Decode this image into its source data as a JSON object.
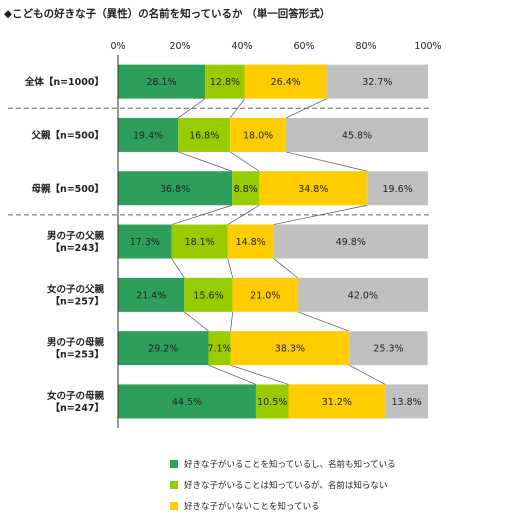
{
  "title": "◆こどもの好きな子（異性）の名前を知っているか （単一回答形式）",
  "colors": {
    "know_both": "#2e9e5b",
    "know_exists_not_name": "#99cc00",
    "know_not_exists": "#ffcc00",
    "other": "#c0c0c0"
  },
  "legend": [
    "好きな子がいることを知っているし、名前も知っている",
    "好きな子がいることは知っているが、名前は知らない",
    "好きな子がいないことを知っている"
  ],
  "chart_data": {
    "type": "bar",
    "orientation": "horizontal",
    "stacked": "percent",
    "title": "◆こどもの好きな子（異性）の名前を知っているか （単一回答形式）",
    "x_ticks": [
      "0%",
      "20%",
      "40%",
      "60%",
      "80%",
      "100%"
    ],
    "xlim": [
      0,
      100
    ],
    "categories": [
      [
        "全体【n=1000】"
      ],
      [
        "父親【n=500】"
      ],
      [
        "母親【n=500】"
      ],
      [
        "男の子の父親",
        "【n=243】"
      ],
      [
        "女の子の父親",
        "【n=257】"
      ],
      [
        "男の子の母親",
        "【n=253】"
      ],
      [
        "女の子の母親",
        "【n=247】"
      ]
    ],
    "series": [
      {
        "name": "好きな子がいることを知っているし、名前も知っている",
        "color": "#2e9e5b",
        "values": [
          28.1,
          19.4,
          36.8,
          17.3,
          21.4,
          29.2,
          44.5
        ]
      },
      {
        "name": "好きな子がいることは知っているが、名前は知らない",
        "color": "#99cc00",
        "values": [
          12.8,
          16.8,
          8.8,
          18.1,
          15.6,
          7.1,
          10.5
        ]
      },
      {
        "name": "好きな子がいないことを知っている",
        "color": "#ffcc00",
        "values": [
          26.4,
          18.0,
          34.8,
          14.8,
          21.0,
          38.3,
          31.2
        ]
      },
      {
        "color": "#c0c0c0",
        "values": [
          32.7,
          45.8,
          19.6,
          49.8,
          42.0,
          25.3,
          13.8
        ]
      }
    ],
    "value_labels": [
      [
        "28.1%",
        "12.8%",
        "26.4%",
        "32.7%"
      ],
      [
        "19.4%",
        "16.8%",
        "18.0%",
        "45.8%"
      ],
      [
        "36.8%",
        "8.8%",
        "34.8%",
        "19.6%"
      ],
      [
        "17.3%",
        "18.1%",
        "14.8%",
        "49.8%"
      ],
      [
        "21.4%",
        "15.6%",
        "21.0%",
        "42.0%"
      ],
      [
        "29.2%",
        "7.1%",
        "38.3%",
        "25.3%"
      ],
      [
        "44.5%",
        "10.5%",
        "31.2%",
        "13.8%"
      ]
    ],
    "separators_after": [
      0,
      2
    ],
    "connector_lines": true,
    "grid": false,
    "legend_position": "bottom"
  }
}
